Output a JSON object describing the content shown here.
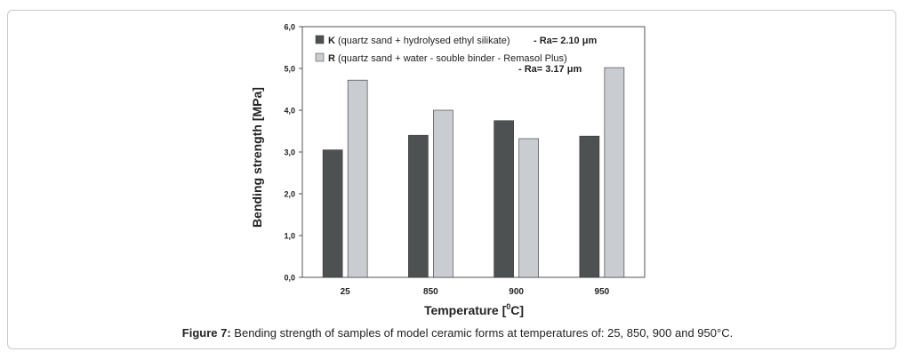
{
  "chart_data": {
    "type": "bar",
    "categories": [
      "25",
      "850",
      "900",
      "950"
    ],
    "series": [
      {
        "name": "K",
        "legend_rest": " (quartz sand + hydrolysed ethyl silikate)",
        "note": "- Ra= 2.10 μm",
        "color": "#4d5152",
        "values": [
          3.05,
          3.4,
          3.75,
          3.38
        ]
      },
      {
        "name": "R",
        "legend_rest": " (quartz sand + water - souble binder - Remasol Plus)",
        "note": "- Ra= 3.17 μm",
        "color": "#c9ccd0",
        "values": [
          4.72,
          4.0,
          3.32,
          5.02
        ]
      }
    ],
    "yticks": [
      "0,0",
      "1,0",
      "2,0",
      "3,0",
      "4,0",
      "5,0",
      "6,0"
    ],
    "ylim": [
      0,
      6
    ],
    "xlabel": "Temperature [",
    "xlabel_sup": "0",
    "xlabel_end": "C]",
    "ylabel": "Bending strength [MPa]",
    "grid": false,
    "legend_position": "top-left"
  },
  "caption": {
    "label": "Figure 7:",
    "text": " Bending strength of samples of model ceramic forms at temperatures of: 25, 850, 900 and 950°C."
  }
}
